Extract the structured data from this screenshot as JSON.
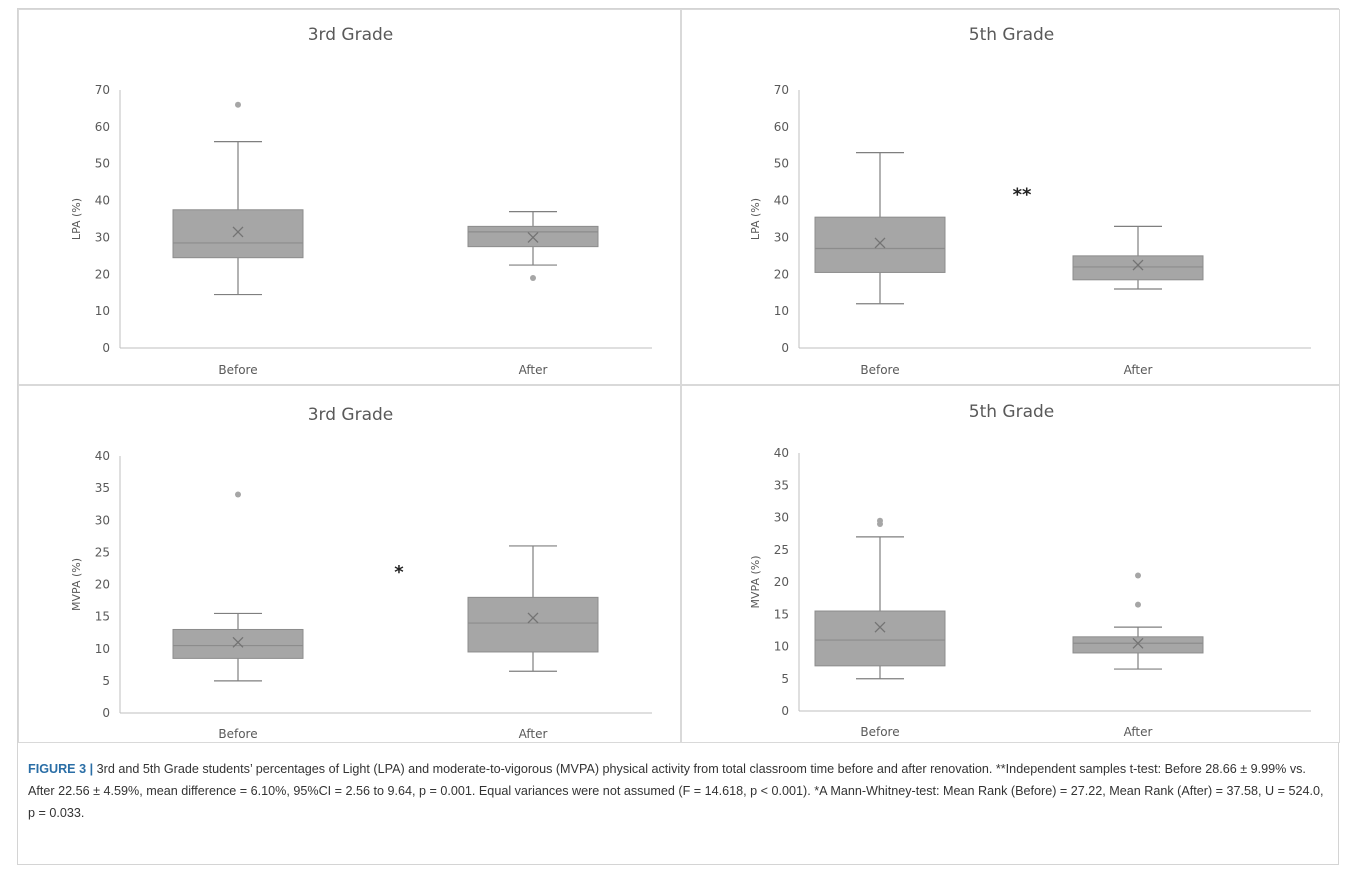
{
  "chart_data": [
    {
      "type": "box",
      "title": "3rd Grade",
      "ylabel": "LPA (%)",
      "ylim": [
        0,
        70
      ],
      "yticks": [
        0,
        10,
        20,
        30,
        40,
        50,
        60,
        70
      ],
      "categories": [
        "Before",
        "After"
      ],
      "boxes": [
        {
          "category": "Before",
          "min": 14.5,
          "q1": 24.5,
          "median": 28.5,
          "q3": 37.5,
          "max": 56,
          "mean": 31.5,
          "outliers": [
            66
          ]
        },
        {
          "category": "After",
          "min": 22.5,
          "q1": 27.5,
          "median": 31.5,
          "q3": 33,
          "max": 37,
          "mean": 30,
          "outliers": [
            19
          ]
        }
      ],
      "annotation": "",
      "grid": false,
      "box_color": "#a6a6a6"
    },
    {
      "type": "box",
      "title": "5th Grade",
      "ylabel": "LPA (%)",
      "ylim": [
        0,
        70
      ],
      "yticks": [
        0,
        10,
        20,
        30,
        40,
        50,
        60,
        70
      ],
      "categories": [
        "Before",
        "After"
      ],
      "boxes": [
        {
          "category": "Before",
          "min": 12,
          "q1": 20.5,
          "median": 27,
          "q3": 35.5,
          "max": 53,
          "mean": 28.5,
          "outliers": []
        },
        {
          "category": "After",
          "min": 16,
          "q1": 18.5,
          "median": 22,
          "q3": 25,
          "max": 33,
          "mean": 22.5,
          "outliers": []
        }
      ],
      "annotation": "**",
      "grid": false,
      "box_color": "#a6a6a6"
    },
    {
      "type": "box",
      "title": "3rd Grade",
      "ylabel": "MVPA (%)",
      "ylim": [
        0,
        40
      ],
      "yticks": [
        0,
        5,
        10,
        15,
        20,
        25,
        30,
        35,
        40
      ],
      "categories": [
        "Before",
        "After"
      ],
      "boxes": [
        {
          "category": "Before",
          "min": 5,
          "q1": 8.5,
          "median": 10.5,
          "q3": 13,
          "max": 15.5,
          "mean": 11,
          "outliers": [
            34
          ]
        },
        {
          "category": "After",
          "min": 6.5,
          "q1": 9.5,
          "median": 14,
          "q3": 18,
          "max": 26,
          "mean": 14.8,
          "outliers": []
        }
      ],
      "annotation": "*",
      "grid": false,
      "box_color": "#a6a6a6"
    },
    {
      "type": "box",
      "title": "5th Grade",
      "ylabel": "MVPA (%)",
      "ylim": [
        0,
        40
      ],
      "yticks": [
        0,
        5,
        10,
        15,
        20,
        25,
        30,
        35,
        40
      ],
      "categories": [
        "Before",
        "After"
      ],
      "boxes": [
        {
          "category": "Before",
          "min": 5,
          "q1": 7,
          "median": 11,
          "q3": 15.5,
          "max": 27,
          "mean": 13,
          "outliers": [
            29,
            29.5
          ]
        },
        {
          "category": "After",
          "min": 6.5,
          "q1": 9,
          "median": 10.5,
          "q3": 11.5,
          "max": 13,
          "mean": 10.5,
          "outliers": [
            16.5,
            21
          ]
        }
      ],
      "annotation": "",
      "grid": false,
      "box_color": "#a6a6a6"
    }
  ],
  "caption": {
    "label": "FIGURE 3",
    "separator": " | ",
    "text": "3rd and 5th Grade students’ percentages of Light (LPA) and moderate-to-vigorous (MVPA) physical activity from total classroom time before and after renovation. **Independent samples t-test: Before 28.66 ± 9.99% vs. After 22.56 ± 4.59%, mean difference = 6.10%, 95%CI = 2.56 to 9.64, p = 0.001. Equal variances were not assumed (F = 14.618, p < 0.001). *A Mann-Whitney-test: Mean Rank (Before) = 27.22, Mean Rank (After) = 37.58, U = 524.0, p = 0.033."
  }
}
